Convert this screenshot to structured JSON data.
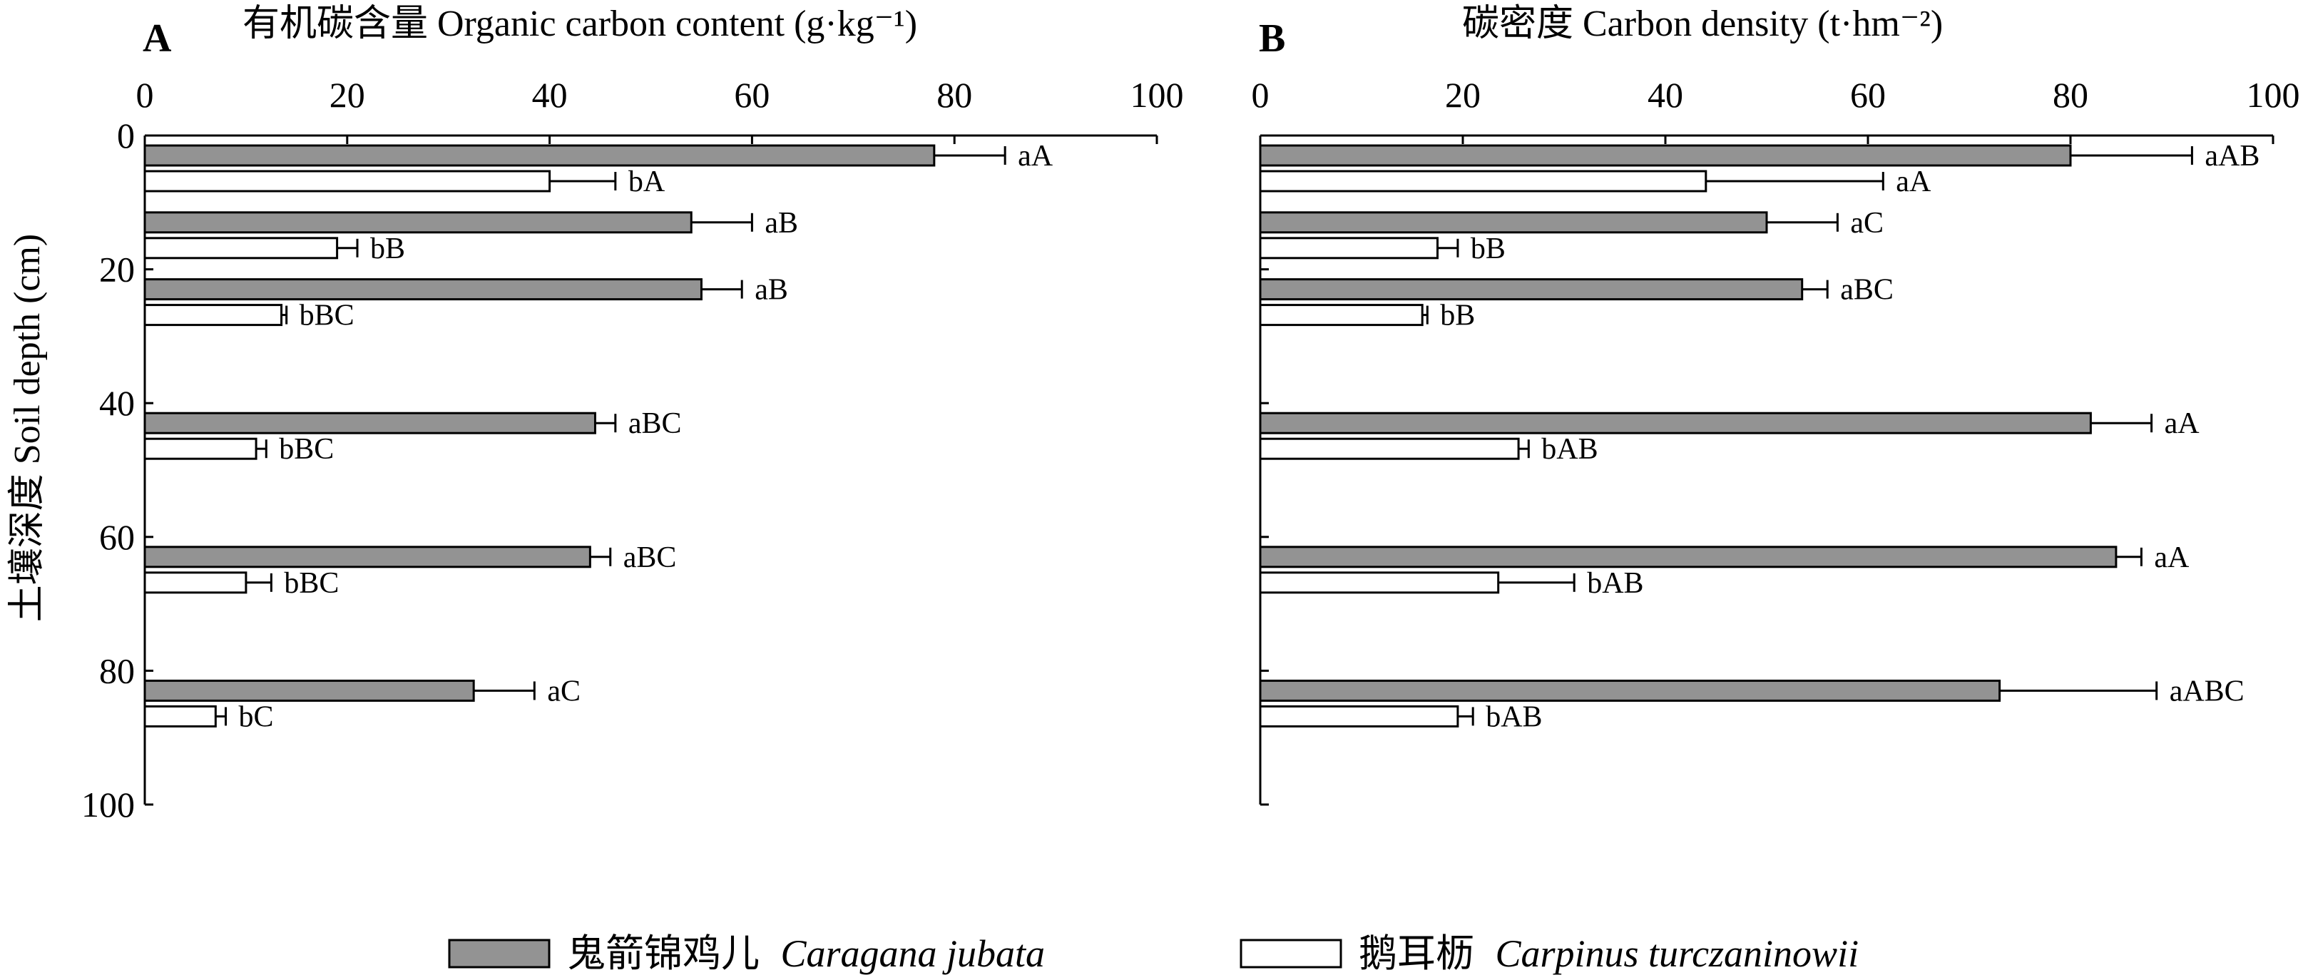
{
  "chart_data": [
    {
      "type": "bar",
      "orientation": "horizontal",
      "panel": "A",
      "title": "有机碳含量 Organic carbon content (g·kg⁻¹)",
      "xlabel": "有机碳含量 Organic carbon content (g·kg⁻¹)",
      "ylabel": "土壤深度 Soil depth (cm)",
      "xlim": [
        0,
        100
      ],
      "ylim": [
        0,
        100
      ],
      "x_ticks": [
        0,
        20,
        40,
        60,
        80,
        100
      ],
      "y_ticks": [
        0,
        20,
        40,
        60,
        80,
        100
      ],
      "x_axis_position": "top",
      "y_axis_inverted": true,
      "grid": false,
      "depths": [
        0,
        10,
        20,
        40,
        60,
        80
      ],
      "series": [
        {
          "name": "鬼箭锦鸡儿 Caragana jubata",
          "color": "#939393",
          "values": [
            78,
            54,
            55,
            44.5,
            44,
            32.5
          ],
          "errors": [
            7,
            6,
            4,
            2,
            2,
            6
          ],
          "labels": [
            "aA",
            "aB",
            "aB",
            "aBC",
            "aBC",
            "aC"
          ]
        },
        {
          "name": "鹅耳枥 Carpinus turczaninowii",
          "color": "#ffffff",
          "values": [
            40,
            19,
            13.5,
            11,
            10,
            7
          ],
          "errors": [
            6.5,
            2,
            0.5,
            1,
            2.5,
            1
          ],
          "labels": [
            "bA",
            "bB",
            "bBC",
            "bBC",
            "bBC",
            "bC"
          ]
        }
      ]
    },
    {
      "type": "bar",
      "orientation": "horizontal",
      "panel": "B",
      "title": "碳密度 Carbon density (t·hm⁻²)",
      "xlabel": "碳密度 Carbon density (t·hm⁻²)",
      "ylabel": "",
      "xlim": [
        0,
        100
      ],
      "ylim": [
        0,
        100
      ],
      "x_ticks": [
        0,
        20,
        40,
        60,
        80,
        100
      ],
      "y_ticks": [
        0,
        20,
        40,
        60,
        80,
        100
      ],
      "x_axis_position": "top",
      "y_axis_inverted": true,
      "grid": false,
      "depths": [
        0,
        10,
        20,
        40,
        60,
        80
      ],
      "series": [
        {
          "name": "鬼箭锦鸡儿 Caragana jubata",
          "color": "#939393",
          "values": [
            80,
            50,
            53.5,
            82,
            84.5,
            73
          ],
          "errors": [
            12,
            7,
            2.5,
            6,
            2.5,
            15.5
          ],
          "labels": [
            "aAB",
            "aC",
            "aBC",
            "aA",
            "aA",
            "aABC"
          ]
        },
        {
          "name": "鹅耳枥 Carpinus turczaninowii",
          "color": "#ffffff",
          "values": [
            44,
            17.5,
            16,
            25.5,
            23.5,
            19.5
          ],
          "errors": [
            17.5,
            2,
            0.5,
            1,
            7.5,
            1.5
          ],
          "labels": [
            "aA",
            "bB",
            "bB",
            "bAB",
            "bAB",
            "bAB"
          ]
        }
      ]
    }
  ],
  "panels": [
    {
      "letter": "A",
      "title": "有机碳含量 Organic carbon content (g·kg⁻¹)"
    },
    {
      "letter": "B",
      "title": "碳密度 Carbon density (t·hm⁻²)"
    }
  ],
  "y_axis_title": "土壤深度 Soil depth (cm)",
  "legend": {
    "placement": "bottom",
    "items": [
      {
        "chinese": "鬼箭锦鸡儿",
        "latin": "Caragana jubata",
        "color": "#939393"
      },
      {
        "chinese": "鹅耳枥",
        "latin": "Carpinus turczaninowii",
        "color": "#ffffff"
      }
    ]
  }
}
